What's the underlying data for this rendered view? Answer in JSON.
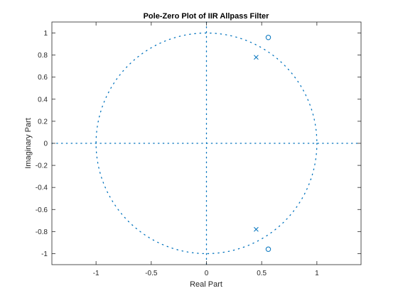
{
  "chart_data": {
    "type": "scatter",
    "title": "Pole-Zero Plot of IIR Allpass Filter",
    "xlabel": "Real Part",
    "ylabel": "Imaginary Part",
    "xlim": [
      -1.4,
      1.4
    ],
    "ylim": [
      -1.1,
      1.1
    ],
    "xticks": [
      -1,
      -0.5,
      0,
      0.5,
      1
    ],
    "xtick_labels": [
      "-1",
      "-0.5",
      "0",
      "0.5",
      "1"
    ],
    "yticks": [
      -1,
      -0.8,
      -0.6,
      -0.4,
      -0.2,
      0,
      0.2,
      0.4,
      0.6,
      0.8,
      1
    ],
    "ytick_labels": [
      "-1",
      "-0.8",
      "-0.6",
      "-0.4",
      "-0.2",
      "0",
      "0.2",
      "0.4",
      "0.6",
      "0.8",
      "1"
    ],
    "grid": false,
    "unit_circle": true,
    "color": "#0072BD",
    "zeros": [
      {
        "x": 0.56,
        "y": 0.96
      },
      {
        "x": 0.56,
        "y": -0.96
      }
    ],
    "poles": [
      {
        "x": 0.45,
        "y": 0.78
      },
      {
        "x": 0.45,
        "y": -0.78
      }
    ]
  }
}
